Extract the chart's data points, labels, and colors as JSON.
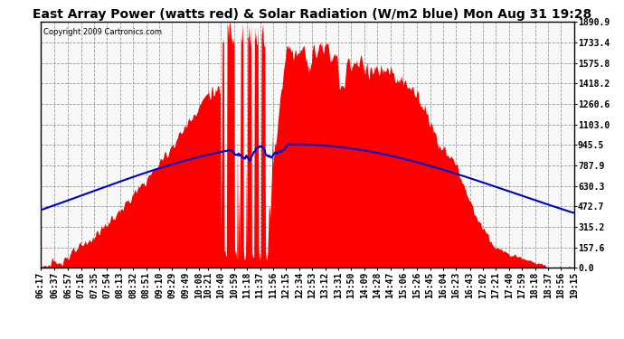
{
  "title": "East Array Power (watts red) & Solar Radiation (W/m2 blue) Mon Aug 31 19:28",
  "copyright": "Copyright 2009 Cartronics.com",
  "y_ticks": [
    0.0,
    157.6,
    315.2,
    472.7,
    630.3,
    787.9,
    945.5,
    1103.0,
    1260.6,
    1418.2,
    1575.8,
    1733.4,
    1890.9
  ],
  "ymax": 1890.9,
  "ymin": 0.0,
  "x_labels": [
    "06:17",
    "06:37",
    "06:57",
    "07:16",
    "07:35",
    "07:54",
    "08:13",
    "08:32",
    "08:51",
    "09:10",
    "09:29",
    "09:49",
    "10:08",
    "10:21",
    "10:40",
    "10:59",
    "11:18",
    "11:37",
    "11:56",
    "12:15",
    "12:34",
    "12:53",
    "13:12",
    "13:31",
    "13:50",
    "14:09",
    "14:28",
    "14:47",
    "15:06",
    "15:26",
    "15:45",
    "16:04",
    "16:23",
    "16:43",
    "17:02",
    "17:21",
    "17:40",
    "17:59",
    "18:18",
    "18:37",
    "18:56",
    "19:15"
  ],
  "background_color": "#ffffff",
  "plot_bg_color": "#ffffff",
  "fill_color": "#ff0000",
  "line_color": "#0000cc",
  "grid_color": "#aaaaaa",
  "title_fontsize": 10,
  "tick_fontsize": 7
}
